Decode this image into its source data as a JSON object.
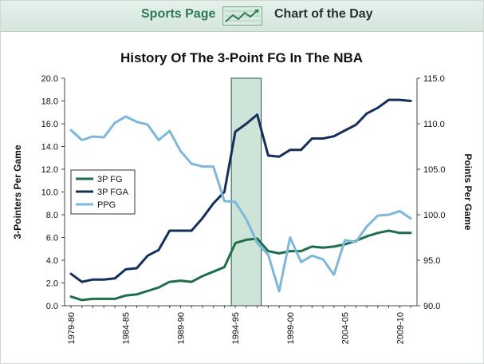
{
  "header": {
    "left_label": "Sports Page",
    "right_label": "Chart of the Day",
    "logo_icon": "chart-line-icon"
  },
  "chart_data": {
    "type": "line",
    "title": "History Of The 3-Point FG In The NBA",
    "ylabel": "3-Pointers Per Game",
    "y2label": "Points Per Game",
    "ylim": [
      0,
      20
    ],
    "y2lim": [
      90,
      115
    ],
    "yticks": [
      "0.0",
      "2.0",
      "4.0",
      "6.0",
      "8.0",
      "10.0",
      "12.0",
      "14.0",
      "16.0",
      "18.0",
      "20.0"
    ],
    "y2ticks": [
      "90.0",
      "95.0",
      "100.0",
      "105.0",
      "110.0",
      "115.0"
    ],
    "x": [
      "1979-80",
      "1980-81",
      "1981-82",
      "1982-83",
      "1983-84",
      "1984-85",
      "1985-86",
      "1986-87",
      "1987-88",
      "1988-89",
      "1989-90",
      "1990-91",
      "1991-92",
      "1992-93",
      "1993-94",
      "1994-95",
      "1995-96",
      "1996-97",
      "1997-98",
      "1998-99",
      "1999-00",
      "2000-01",
      "2001-02",
      "2002-03",
      "2003-04",
      "2004-05",
      "2005-06",
      "2006-07",
      "2007-08",
      "2008-09",
      "2009-10",
      "2010-11"
    ],
    "x_tick_labels": [
      "1979-80",
      "1984-85",
      "1989-90",
      "1994-95",
      "1999-00",
      "2004-05",
      "2009-10"
    ],
    "highlight": [
      "1994-95",
      "1996-97"
    ],
    "legend_position": "middle-left",
    "grid": false,
    "series": [
      {
        "name": "3P FG",
        "axis": "left",
        "color": "#1e6e4a",
        "values": [
          0.8,
          0.5,
          0.6,
          0.6,
          0.6,
          0.9,
          1.0,
          1.3,
          1.6,
          2.1,
          2.2,
          2.1,
          2.6,
          3.0,
          3.4,
          5.5,
          5.8,
          5.9,
          4.8,
          4.6,
          4.8,
          4.8,
          5.2,
          5.1,
          5.2,
          5.4,
          5.7,
          6.1,
          6.4,
          6.6,
          6.4,
          6.4
        ]
      },
      {
        "name": "3P FGA",
        "axis": "left",
        "color": "#14305a",
        "values": [
          2.8,
          2.1,
          2.3,
          2.3,
          2.4,
          3.2,
          3.3,
          4.4,
          4.9,
          6.6,
          6.6,
          6.6,
          7.7,
          9.0,
          10.0,
          15.3,
          16.0,
          16.8,
          13.2,
          13.1,
          13.7,
          13.7,
          14.7,
          14.7,
          14.9,
          15.4,
          15.9,
          16.9,
          17.4,
          18.1,
          18.1,
          18.0
        ]
      },
      {
        "name": "PPG",
        "axis": "right",
        "color": "#7db8dc",
        "values": [
          109.3,
          108.2,
          108.6,
          108.5,
          110.1,
          110.8,
          110.2,
          109.9,
          108.2,
          109.2,
          107.0,
          105.6,
          105.3,
          105.3,
          101.5,
          101.4,
          99.5,
          96.9,
          95.6,
          91.6,
          97.5,
          94.8,
          95.5,
          95.1,
          93.4,
          97.2,
          97.0,
          98.7,
          99.9,
          100.0,
          100.4,
          99.6
        ]
      }
    ]
  }
}
